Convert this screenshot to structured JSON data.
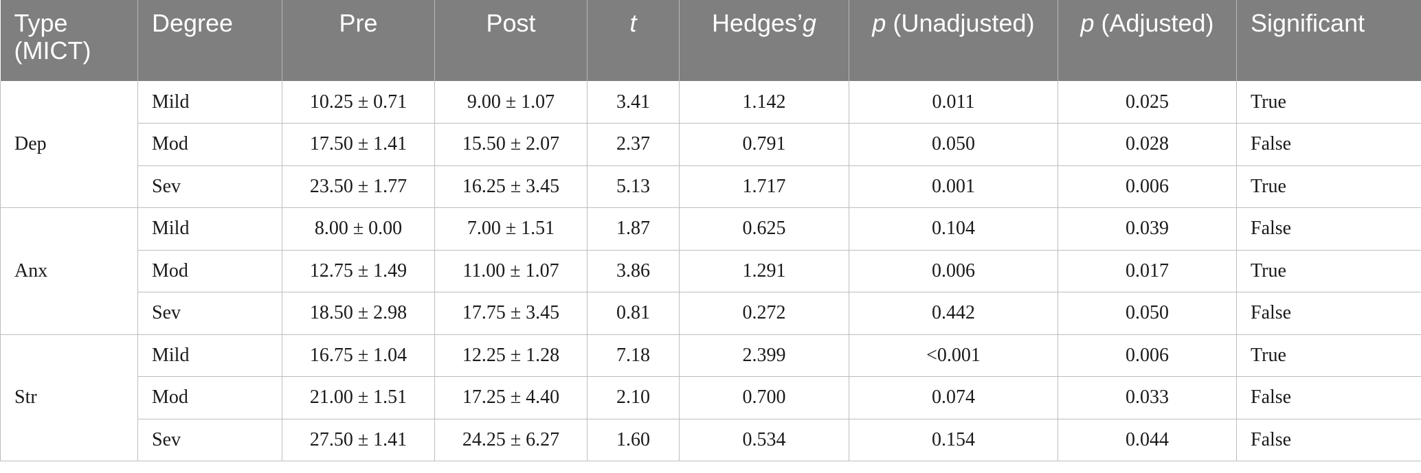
{
  "header": {
    "type_label": "Type (MICT)",
    "degree_label": "Degree",
    "pre_label": "Pre",
    "post_label": "Post",
    "t_label": "t",
    "hedges_label": "Hedges’",
    "hedges_symbol": "g",
    "p_symbol": "p",
    "p_unadj_suffix": " (Unadjusted)",
    "p_adj_suffix": " (Adjusted)",
    "significant_label": "Significant"
  },
  "groups": [
    {
      "type": "Dep",
      "rows": [
        {
          "degree": "Mild",
          "pre": "10.25 ± 0.71",
          "post": "9.00 ± 1.07",
          "t": "3.41",
          "g": "1.142",
          "p_unadj": "0.011",
          "p_adj": "0.025",
          "sig": "True"
        },
        {
          "degree": "Mod",
          "pre": "17.50 ± 1.41",
          "post": "15.50 ± 2.07",
          "t": "2.37",
          "g": "0.791",
          "p_unadj": "0.050",
          "p_adj": "0.028",
          "sig": "False"
        },
        {
          "degree": "Sev",
          "pre": "23.50 ± 1.77",
          "post": "16.25 ± 3.45",
          "t": "5.13",
          "g": "1.717",
          "p_unadj": "0.001",
          "p_adj": "0.006",
          "sig": "True"
        }
      ]
    },
    {
      "type": "Anx",
      "rows": [
        {
          "degree": "Mild",
          "pre": "8.00 ± 0.00",
          "post": "7.00 ± 1.51",
          "t": "1.87",
          "g": "0.625",
          "p_unadj": "0.104",
          "p_adj": "0.039",
          "sig": "False"
        },
        {
          "degree": "Mod",
          "pre": "12.75 ± 1.49",
          "post": "11.00 ± 1.07",
          "t": "3.86",
          "g": "1.291",
          "p_unadj": "0.006",
          "p_adj": "0.017",
          "sig": "True"
        },
        {
          "degree": "Sev",
          "pre": "18.50 ± 2.98",
          "post": "17.75 ± 3.45",
          "t": "0.81",
          "g": "0.272",
          "p_unadj": "0.442",
          "p_adj": "0.050",
          "sig": "False"
        }
      ]
    },
    {
      "type": "Str",
      "rows": [
        {
          "degree": "Mild",
          "pre": "16.75 ± 1.04",
          "post": "12.25 ± 1.28",
          "t": "7.18",
          "g": "2.399",
          "p_unadj": "<0.001",
          "p_adj": "0.006",
          "sig": "True"
        },
        {
          "degree": "Mod",
          "pre": "21.00 ± 1.51",
          "post": "17.25 ± 4.40",
          "t": "2.10",
          "g": "0.700",
          "p_unadj": "0.074",
          "p_adj": "0.033",
          "sig": "False"
        },
        {
          "degree": "Sev",
          "pre": "27.50 ± 1.41",
          "post": "24.25 ± 6.27",
          "t": "1.60",
          "g": "0.534",
          "p_unadj": "0.154",
          "p_adj": "0.044",
          "sig": "False"
        }
      ]
    }
  ]
}
